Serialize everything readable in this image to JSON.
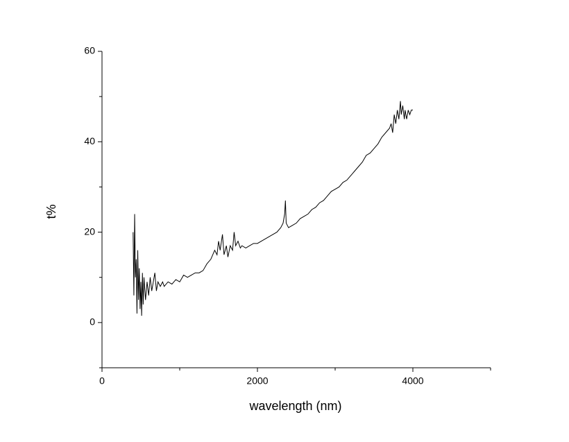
{
  "chart_data": {
    "type": "line",
    "x_label": "wavelength (nm)",
    "y_label": "t%",
    "xlim": [
      0,
      5000
    ],
    "xticks": [
      0,
      2000,
      4000
    ],
    "xminor_ticks": [
      1000,
      3000,
      5000
    ],
    "ylim": [
      -10,
      60
    ],
    "yticks": [
      0,
      20,
      40,
      60
    ],
    "yminor_ticks": [
      -10,
      10,
      30,
      50
    ],
    "grid": false,
    "series": [
      {
        "color": "#000000",
        "x": [
          400,
          410,
          420,
          430,
          440,
          450,
          460,
          470,
          480,
          490,
          500,
          510,
          520,
          530,
          540,
          560,
          580,
          600,
          620,
          640,
          660,
          680,
          700,
          720,
          750,
          780,
          800,
          850,
          900,
          950,
          1000,
          1050,
          1100,
          1150,
          1200,
          1250,
          1300,
          1350,
          1400,
          1450,
          1480,
          1500,
          1520,
          1550,
          1570,
          1600,
          1620,
          1650,
          1680,
          1700,
          1720,
          1750,
          1780,
          1800,
          1850,
          1900,
          1950,
          2000,
          2050,
          2100,
          2150,
          2200,
          2250,
          2300,
          2330,
          2350,
          2360,
          2370,
          2400,
          2450,
          2500,
          2550,
          2600,
          2650,
          2700,
          2750,
          2800,
          2850,
          2900,
          2950,
          3000,
          3050,
          3100,
          3150,
          3200,
          3250,
          3300,
          3350,
          3400,
          3450,
          3500,
          3550,
          3600,
          3650,
          3700,
          3720,
          3740,
          3760,
          3780,
          3800,
          3820,
          3840,
          3850,
          3870,
          3890,
          3900,
          3920,
          3940,
          3960,
          3980,
          4000
        ],
        "values": [
          20,
          6,
          24,
          10,
          14,
          2,
          16,
          5,
          12,
          3,
          9,
          1.5,
          11,
          4,
          10,
          5,
          9,
          6,
          10,
          7,
          9,
          11,
          7,
          9,
          8,
          9,
          8,
          9,
          8.5,
          9.5,
          9,
          10.5,
          10,
          10.5,
          11,
          11,
          11.5,
          13,
          14,
          16,
          15,
          18,
          16,
          19.5,
          15,
          17,
          14.5,
          17,
          16,
          20,
          17,
          18,
          16.5,
          17,
          16.5,
          17,
          17.5,
          17.5,
          18,
          18.5,
          19,
          19.5,
          20,
          21,
          22,
          24,
          27,
          22,
          21,
          21.5,
          22,
          23,
          23.5,
          24,
          25,
          25.5,
          26.5,
          27,
          28,
          29,
          29.5,
          30,
          31,
          31.5,
          32.5,
          33.5,
          34.5,
          35.5,
          37,
          37.5,
          38.5,
          39.5,
          41,
          42,
          43,
          44,
          42,
          46,
          44,
          47,
          45,
          49,
          46,
          48,
          45,
          47,
          45,
          47,
          46,
          47,
          47
        ]
      }
    ]
  }
}
